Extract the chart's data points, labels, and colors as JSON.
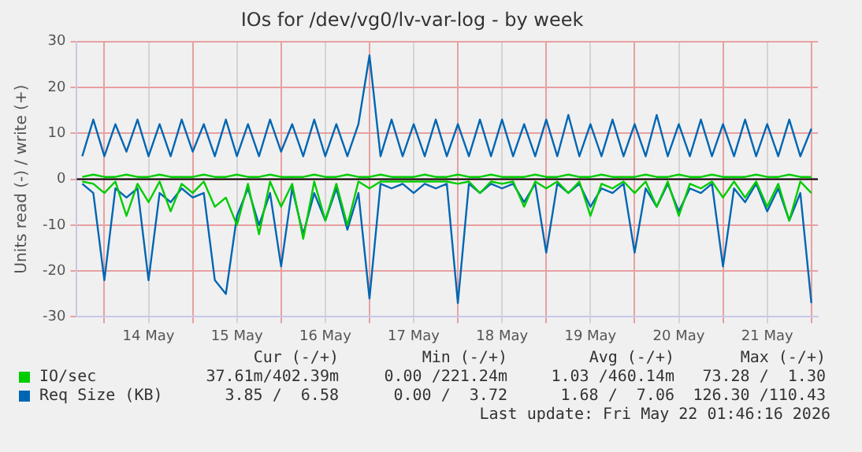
{
  "chart_data": {
    "type": "line",
    "title": "IOs for /dev/vg0/lv-var-log - by week",
    "ylabel": "Units read (-) / write (+)",
    "x": [
      "2026-05-13T18:00",
      "2026-05-13T21:00",
      "2026-05-14T00:00",
      "2026-05-14T03:00",
      "2026-05-14T06:00",
      "2026-05-14T09:00",
      "2026-05-14T12:00",
      "2026-05-14T15:00",
      "2026-05-14T18:00",
      "2026-05-14T21:00",
      "2026-05-15T00:00",
      "2026-05-15T03:00",
      "2026-05-15T06:00",
      "2026-05-15T09:00",
      "2026-05-15T12:00",
      "2026-05-15T15:00",
      "2026-05-15T18:00",
      "2026-05-15T21:00",
      "2026-05-16T00:00",
      "2026-05-16T03:00",
      "2026-05-16T06:00",
      "2026-05-16T09:00",
      "2026-05-16T12:00",
      "2026-05-16T15:00",
      "2026-05-16T18:00",
      "2026-05-16T21:00",
      "2026-05-17T00:00",
      "2026-05-17T03:00",
      "2026-05-17T06:00",
      "2026-05-17T09:00",
      "2026-05-17T12:00",
      "2026-05-17T15:00",
      "2026-05-17T18:00",
      "2026-05-17T21:00",
      "2026-05-18T00:00",
      "2026-05-18T03:00",
      "2026-05-18T06:00",
      "2026-05-18T09:00",
      "2026-05-18T12:00",
      "2026-05-18T15:00",
      "2026-05-18T18:00",
      "2026-05-18T21:00",
      "2026-05-19T00:00",
      "2026-05-19T03:00",
      "2026-05-19T06:00",
      "2026-05-19T09:00",
      "2026-05-19T12:00",
      "2026-05-19T15:00",
      "2026-05-19T18:00",
      "2026-05-19T21:00",
      "2026-05-20T00:00",
      "2026-05-20T03:00",
      "2026-05-20T06:00",
      "2026-05-20T09:00",
      "2026-05-20T12:00",
      "2026-05-20T15:00",
      "2026-05-20T18:00",
      "2026-05-20T21:00",
      "2026-05-21T00:00",
      "2026-05-21T03:00",
      "2026-05-21T06:00",
      "2026-05-21T09:00",
      "2026-05-21T12:00",
      "2026-05-21T15:00",
      "2026-05-21T18:00",
      "2026-05-21T21:00",
      "2026-05-22T00:00"
    ],
    "series": [
      {
        "name": "IO/sec",
        "color": "#00cc00",
        "values": [
          0.5,
          1,
          0.5,
          0.5,
          1,
          0.5,
          0.5,
          1,
          0.5,
          0.5,
          0.5,
          1,
          0.5,
          0.5,
          1,
          0.5,
          0.5,
          1,
          0.5,
          0.5,
          0.5,
          1,
          0.5,
          0.5,
          1,
          0.5,
          0.5,
          1,
          0.5,
          0.5,
          0.5,
          1,
          0.5,
          0.5,
          1,
          0.5,
          0.5,
          1,
          0.5,
          0.5,
          0.5,
          1,
          0.5,
          0.5,
          1,
          0.5,
          0.5,
          1,
          0.5,
          0.5,
          0.5,
          1,
          0.5,
          0.5,
          1,
          0.5,
          0.5,
          1,
          0.5,
          0.5,
          0.5,
          1,
          0.5,
          0.5,
          1,
          0.5,
          0.5
        ]
      },
      {
        "color": "#00cc00",
        "values": [
          -0.5,
          -1,
          -3,
          -0.5,
          -8,
          -1,
          -5,
          -0.5,
          -7,
          -1,
          -3,
          -0.5,
          -6,
          -4,
          -10,
          -1,
          -12,
          -0.5,
          -6,
          -1,
          -13,
          -0.5,
          -9,
          -1,
          -10,
          -0.5,
          -2,
          -0.5,
          -0.5,
          -0.5,
          -0.5,
          -0.5,
          -0.5,
          -0.5,
          -1,
          -0.5,
          -3,
          -0.5,
          -1,
          -0.5,
          -6,
          -0.5,
          -2,
          -0.5,
          -3,
          -0.5,
          -8,
          -1,
          -2,
          -0.5,
          -3,
          -0.5,
          -6,
          -0.5,
          -8,
          -1,
          -2,
          -0.5,
          -4,
          -0.5,
          -4,
          -0.5,
          -6,
          -1,
          -9,
          -0.5,
          -3
        ]
      },
      {
        "name": "Req Size (KB)",
        "color": "#0066b3",
        "values": [
          5,
          13,
          5,
          12,
          6,
          13,
          5,
          12,
          5,
          13,
          6,
          12,
          5,
          13,
          5,
          12,
          5,
          13,
          6,
          12,
          5,
          13,
          5,
          12,
          5,
          12,
          27,
          5,
          13,
          5,
          12,
          5,
          13,
          5,
          12,
          5,
          13,
          5,
          13,
          5,
          12,
          5,
          13,
          5,
          14,
          5,
          12,
          5,
          13,
          5,
          12,
          5,
          14,
          5,
          12,
          5,
          13,
          5,
          12,
          5,
          13,
          5,
          12,
          5,
          13,
          5,
          11
        ]
      },
      {
        "color": "#0066b3",
        "values": [
          -1,
          -3,
          -22,
          -2,
          -4,
          -2,
          -22,
          -3,
          -5,
          -2,
          -4,
          -3,
          -22,
          -25,
          -8,
          -2,
          -10,
          -3,
          -19,
          -2,
          -12,
          -3,
          -9,
          -2,
          -11,
          -3,
          -26,
          -1,
          -2,
          -1,
          -3,
          -1,
          -2,
          -1,
          -27,
          -1,
          -3,
          -1,
          -2,
          -1,
          -5,
          -1,
          -16,
          -1,
          -3,
          -1,
          -6,
          -2,
          -3,
          -1,
          -16,
          -2,
          -6,
          -1,
          -7,
          -2,
          -3,
          -1,
          -19,
          -2,
          -5,
          -1,
          -7,
          -2,
          -9,
          -3,
          -27
        ]
      }
    ],
    "xlim": [
      "2026-05-13T16:30",
      "2026-05-22T01:46"
    ],
    "xticks": [
      {
        "value": "2026-05-14T00:00",
        "label": null
      },
      {
        "value": "2026-05-14T12:00",
        "label": "14 May"
      },
      {
        "value": "2026-05-15T00:00",
        "label": null
      },
      {
        "value": "2026-05-15T12:00",
        "label": "15 May"
      },
      {
        "value": "2026-05-16T00:00",
        "label": null
      },
      {
        "value": "2026-05-16T12:00",
        "label": "16 May"
      },
      {
        "value": "2026-05-17T00:00",
        "label": null
      },
      {
        "value": "2026-05-17T12:00",
        "label": "17 May"
      },
      {
        "value": "2026-05-18T00:00",
        "label": null
      },
      {
        "value": "2026-05-18T12:00",
        "label": "18 May"
      },
      {
        "value": "2026-05-19T00:00",
        "label": null
      },
      {
        "value": "2026-05-19T12:00",
        "label": "19 May"
      },
      {
        "value": "2026-05-20T00:00",
        "label": null
      },
      {
        "value": "2026-05-20T12:00",
        "label": "20 May"
      },
      {
        "value": "2026-05-21T00:00",
        "label": null
      },
      {
        "value": "2026-05-21T12:00",
        "label": "21 May"
      },
      {
        "value": "2026-05-22T00:00",
        "label": null
      }
    ],
    "ylim": [
      -30,
      30
    ],
    "yticks": [
      -30,
      -20,
      -10,
      0,
      10,
      20,
      30
    ],
    "ref_lines": [
      {
        "axis": "y",
        "value": 0,
        "color": "#000000"
      }
    ],
    "grid": true,
    "legend": "bottom left",
    "marker": "none",
    "line_style": "solid",
    "annotations": [
      "Cur (-/+)",
      "Min (-/+)",
      "Avg (-/+)",
      "Max (-/+)",
      "37.61m/402.39m",
      "0.00 /221.24m",
      "1.03 /460.14m",
      "73.28 /  1.30",
      "3.85 /  6.58",
      "0.00 /  3.72",
      "1.68 /  7.06",
      "126.30 /110.43",
      "Last update: Fri May 22 01:46:16 2026"
    ]
  }
}
